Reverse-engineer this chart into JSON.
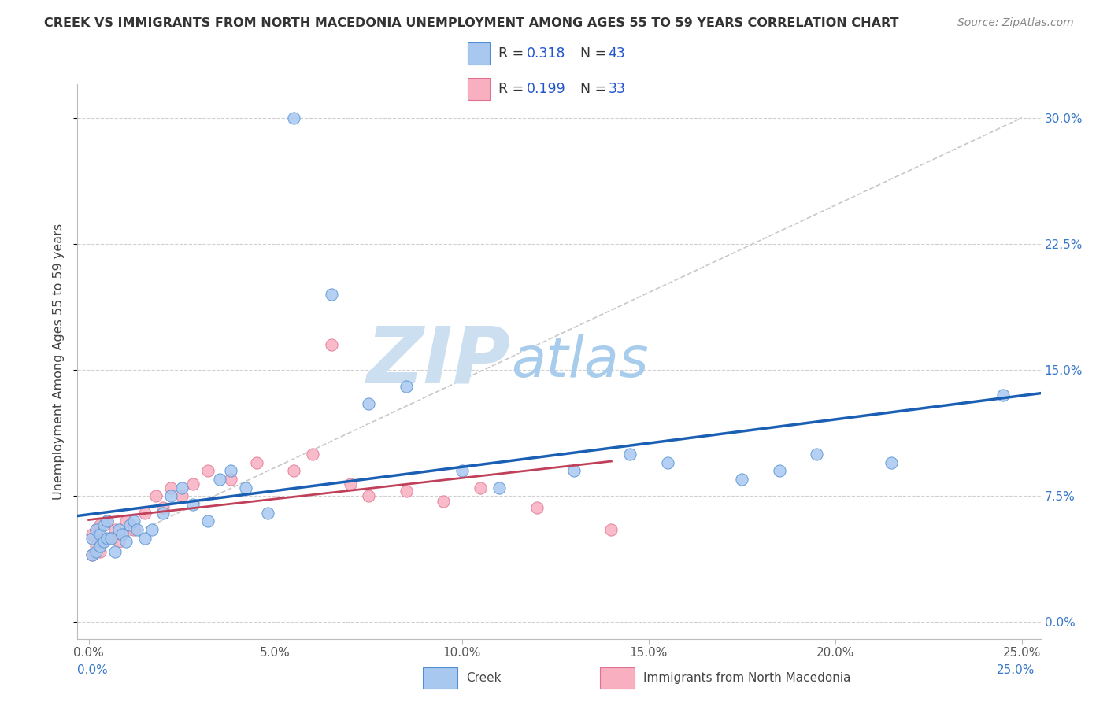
{
  "title": "CREEK VS IMMIGRANTS FROM NORTH MACEDONIA UNEMPLOYMENT AMONG AGES 55 TO 59 YEARS CORRELATION CHART",
  "source": "Source: ZipAtlas.com",
  "ylabel": "Unemployment Among Ages 55 to 59 years",
  "ylim": [
    -0.01,
    0.32
  ],
  "xlim": [
    -0.003,
    0.255
  ],
  "ytick_vals": [
    0.0,
    0.075,
    0.15,
    0.225,
    0.3
  ],
  "ytick_labels": [
    "0.0%",
    "7.5%",
    "15.0%",
    "22.5%",
    "30.0%"
  ],
  "xtick_vals": [
    0.0,
    0.05,
    0.1,
    0.15,
    0.2,
    0.25
  ],
  "xtick_labels": [
    "0.0%",
    "5.0%",
    "10.0%",
    "15.0%",
    "20.0%",
    "25.0%"
  ],
  "creek_color_fill": "#a8c8f0",
  "creek_color_edge": "#5090d0",
  "nm_color_fill": "#f8b0c0",
  "nm_color_edge": "#e07090",
  "creek_line_color": "#1a5fb4",
  "nm_line_color": "#c0405a",
  "gray_line_color": "#c8c8c8",
  "grid_color": "#d0d0d0",
  "watermark_zip_color": "#c8dff0",
  "watermark_atlas_color": "#a0c8e8",
  "background_color": "#ffffff",
  "creek_x": [
    0.001,
    0.001,
    0.002,
    0.002,
    0.003,
    0.003,
    0.004,
    0.004,
    0.005,
    0.005,
    0.006,
    0.007,
    0.008,
    0.009,
    0.01,
    0.011,
    0.012,
    0.013,
    0.015,
    0.017,
    0.02,
    0.022,
    0.025,
    0.028,
    0.032,
    0.035,
    0.038,
    0.042,
    0.048,
    0.055,
    0.065,
    0.075,
    0.085,
    0.1,
    0.11,
    0.13,
    0.145,
    0.155,
    0.175,
    0.185,
    0.195,
    0.215,
    0.245
  ],
  "creek_y": [
    0.04,
    0.05,
    0.042,
    0.055,
    0.045,
    0.052,
    0.048,
    0.058,
    0.05,
    0.06,
    0.05,
    0.042,
    0.055,
    0.052,
    0.048,
    0.058,
    0.06,
    0.055,
    0.05,
    0.055,
    0.065,
    0.075,
    0.08,
    0.07,
    0.06,
    0.085,
    0.09,
    0.08,
    0.065,
    0.3,
    0.195,
    0.13,
    0.14,
    0.09,
    0.08,
    0.09,
    0.1,
    0.095,
    0.085,
    0.09,
    0.1,
    0.095,
    0.135
  ],
  "nm_x": [
    0.001,
    0.001,
    0.002,
    0.002,
    0.003,
    0.003,
    0.004,
    0.005,
    0.006,
    0.007,
    0.008,
    0.009,
    0.01,
    0.012,
    0.015,
    0.018,
    0.02,
    0.022,
    0.025,
    0.028,
    0.032,
    0.038,
    0.045,
    0.055,
    0.06,
    0.065,
    0.07,
    0.075,
    0.085,
    0.095,
    0.105,
    0.12,
    0.14
  ],
  "nm_y": [
    0.04,
    0.052,
    0.045,
    0.055,
    0.042,
    0.058,
    0.05,
    0.06,
    0.05,
    0.055,
    0.048,
    0.052,
    0.06,
    0.055,
    0.065,
    0.075,
    0.068,
    0.08,
    0.075,
    0.082,
    0.09,
    0.085,
    0.095,
    0.09,
    0.1,
    0.165,
    0.082,
    0.075,
    0.078,
    0.072,
    0.08,
    0.068,
    0.055
  ]
}
